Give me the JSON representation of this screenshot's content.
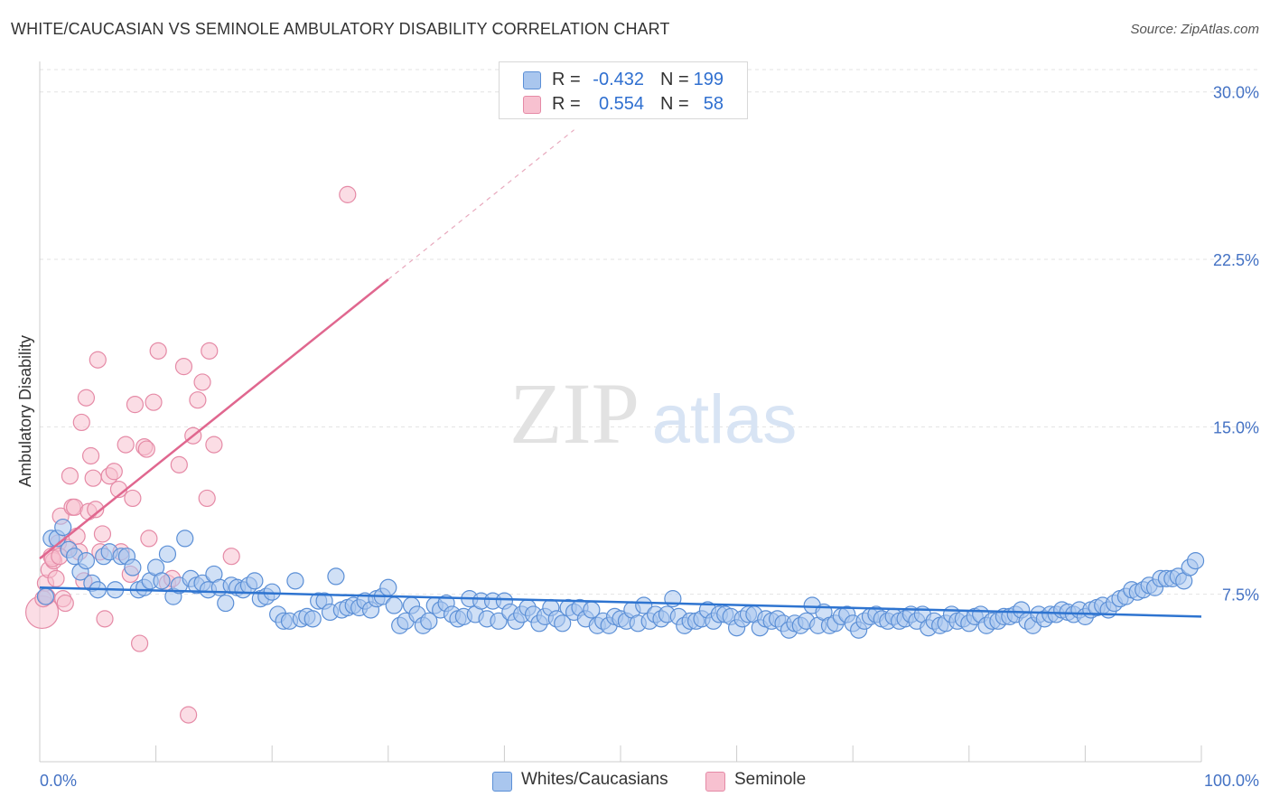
{
  "title": "WHITE/CAUCASIAN VS SEMINOLE AMBULATORY DISABILITY CORRELATION CHART",
  "source": "Source: ZipAtlas.com",
  "watermark": {
    "zip": "ZIP",
    "atlas": "atlas"
  },
  "colors": {
    "blue_fill": "#a9c6ee",
    "blue_stroke": "#5b8fd6",
    "blue_line": "#2e74d0",
    "pink_fill": "#f7c1d0",
    "pink_stroke": "#e58aa6",
    "pink_line": "#e0678f",
    "grid": "#e3e3e3",
    "label_blue": "#4472c4"
  },
  "legend": {
    "rows": [
      {
        "r_label": "R =",
        "r_value": "-0.432",
        "n_label": "N =",
        "n_value": "199"
      },
      {
        "r_label": "R =",
        "r_value": "0.554",
        "n_label": "N =",
        "n_value": "58"
      }
    ]
  },
  "bottom_legend": {
    "series1": "Whites/Caucasians",
    "series2": "Seminole"
  },
  "chart_data": {
    "type": "scatter",
    "title": "WHITE/CAUCASIAN VS SEMINOLE AMBULATORY DISABILITY CORRELATION CHART",
    "xlabel": "",
    "ylabel": "Ambulatory Disability",
    "xlim": [
      0,
      100
    ],
    "ylim": [
      0,
      31
    ],
    "x_tick_labels": {
      "min": "0.0%",
      "max": "100.0%"
    },
    "y_ticks": [
      7.5,
      15.0,
      22.5,
      30.0
    ],
    "y_tick_labels": [
      "7.5%",
      "15.0%",
      "22.5%",
      "30.0%"
    ],
    "series": [
      {
        "name": "Whites/Caucasians",
        "r": -0.432,
        "n": 199,
        "trend": {
          "x": [
            0,
            100
          ],
          "y": [
            7.8,
            6.5
          ]
        },
        "points": [
          [
            0.5,
            7.4
          ],
          [
            1,
            10
          ],
          [
            1.5,
            10
          ],
          [
            2,
            10.5
          ],
          [
            2.5,
            9.5
          ],
          [
            3,
            9.2
          ],
          [
            3.5,
            8.5
          ],
          [
            4,
            9
          ],
          [
            4.5,
            8
          ],
          [
            5,
            7.7
          ],
          [
            5.5,
            9.2
          ],
          [
            6,
            9.4
          ],
          [
            6.5,
            7.7
          ],
          [
            7,
            9.2
          ],
          [
            7.5,
            9.2
          ],
          [
            8,
            8.7
          ],
          [
            8.5,
            7.7
          ],
          [
            9,
            7.8
          ],
          [
            9.5,
            8.1
          ],
          [
            10,
            8.7
          ],
          [
            10.5,
            8.1
          ],
          [
            11,
            9.3
          ],
          [
            11.5,
            7.4
          ],
          [
            12,
            7.9
          ],
          [
            12.5,
            10
          ],
          [
            13,
            8.2
          ],
          [
            13.5,
            7.9
          ],
          [
            14,
            8
          ],
          [
            14.5,
            7.7
          ],
          [
            15,
            8.4
          ],
          [
            15.5,
            7.8
          ],
          [
            16,
            7.1
          ],
          [
            16.5,
            7.9
          ],
          [
            17,
            7.8
          ],
          [
            17.5,
            7.7
          ],
          [
            18,
            7.9
          ],
          [
            18.5,
            8.1
          ],
          [
            19,
            7.3
          ],
          [
            19.5,
            7.4
          ],
          [
            20,
            7.6
          ],
          [
            20.5,
            6.6
          ],
          [
            21,
            6.3
          ],
          [
            21.5,
            6.3
          ],
          [
            22,
            8.1
          ],
          [
            22.5,
            6.4
          ],
          [
            23,
            6.5
          ],
          [
            23.5,
            6.4
          ],
          [
            24,
            7.2
          ],
          [
            24.5,
            7.2
          ],
          [
            25,
            6.7
          ],
          [
            25.5,
            8.3
          ],
          [
            26,
            6.8
          ],
          [
            26.5,
            6.9
          ],
          [
            27,
            7
          ],
          [
            27.5,
            6.9
          ],
          [
            28,
            7.2
          ],
          [
            28.5,
            6.8
          ],
          [
            29,
            7.3
          ],
          [
            29.5,
            7.4
          ],
          [
            30,
            7.8
          ],
          [
            30.5,
            7
          ],
          [
            31,
            6.1
          ],
          [
            31.5,
            6.3
          ],
          [
            32,
            7
          ],
          [
            32.5,
            6.6
          ],
          [
            33,
            6.1
          ],
          [
            33.5,
            6.3
          ],
          [
            34,
            7
          ],
          [
            34.5,
            6.8
          ],
          [
            35,
            7.1
          ],
          [
            35.5,
            6.6
          ],
          [
            36,
            6.4
          ],
          [
            36.5,
            6.5
          ],
          [
            37,
            7.3
          ],
          [
            37.5,
            6.6
          ],
          [
            38,
            7.2
          ],
          [
            38.5,
            6.4
          ],
          [
            39,
            7.2
          ],
          [
            39.5,
            6.3
          ],
          [
            40,
            7.2
          ],
          [
            40.5,
            6.7
          ],
          [
            41,
            6.3
          ],
          [
            41.5,
            6.6
          ],
          [
            42,
            6.9
          ],
          [
            42.5,
            6.6
          ],
          [
            43,
            6.2
          ],
          [
            43.5,
            6.5
          ],
          [
            44,
            6.9
          ],
          [
            44.5,
            6.4
          ],
          [
            45,
            6.2
          ],
          [
            45.5,
            6.9
          ],
          [
            46,
            6.7
          ],
          [
            46.5,
            6.9
          ],
          [
            47,
            6.4
          ],
          [
            47.5,
            6.8
          ],
          [
            48,
            6.1
          ],
          [
            48.5,
            6.3
          ],
          [
            49,
            6.1
          ],
          [
            49.5,
            6.5
          ],
          [
            50,
            6.4
          ],
          [
            50.5,
            6.3
          ],
          [
            51,
            6.8
          ],
          [
            51.5,
            6.2
          ],
          [
            52,
            7
          ],
          [
            52.5,
            6.3
          ],
          [
            53,
            6.6
          ],
          [
            53.5,
            6.4
          ],
          [
            54,
            6.6
          ],
          [
            54.5,
            7.3
          ],
          [
            55,
            6.5
          ],
          [
            55.5,
            6.1
          ],
          [
            56,
            6.3
          ],
          [
            56.5,
            6.3
          ],
          [
            57,
            6.4
          ],
          [
            57.5,
            6.8
          ],
          [
            58,
            6.3
          ],
          [
            58.5,
            6.6
          ],
          [
            59,
            6.6
          ],
          [
            59.5,
            6.5
          ],
          [
            60,
            6
          ],
          [
            60.5,
            6.4
          ],
          [
            61,
            6.6
          ],
          [
            61.5,
            6.6
          ],
          [
            62,
            6
          ],
          [
            62.5,
            6.4
          ],
          [
            63,
            6.3
          ],
          [
            63.5,
            6.4
          ],
          [
            64,
            6.2
          ],
          [
            64.5,
            5.9
          ],
          [
            65,
            6.2
          ],
          [
            65.5,
            6.1
          ],
          [
            66,
            6.3
          ],
          [
            66.5,
            7
          ],
          [
            67,
            6.1
          ],
          [
            67.5,
            6.7
          ],
          [
            68,
            6.1
          ],
          [
            68.5,
            6.2
          ],
          [
            69,
            6.5
          ],
          [
            69.5,
            6.6
          ],
          [
            70,
            6.2
          ],
          [
            70.5,
            5.9
          ],
          [
            71,
            6.3
          ],
          [
            71.5,
            6.5
          ],
          [
            72,
            6.6
          ],
          [
            72.5,
            6.4
          ],
          [
            73,
            6.3
          ],
          [
            73.5,
            6.5
          ],
          [
            74,
            6.3
          ],
          [
            74.5,
            6.4
          ],
          [
            75,
            6.6
          ],
          [
            75.5,
            6.3
          ],
          [
            76,
            6.6
          ],
          [
            76.5,
            6
          ],
          [
            77,
            6.3
          ],
          [
            77.5,
            6.1
          ],
          [
            78,
            6.2
          ],
          [
            78.5,
            6.6
          ],
          [
            79,
            6.3
          ],
          [
            79.5,
            6.4
          ],
          [
            80,
            6.2
          ],
          [
            80.5,
            6.5
          ],
          [
            81,
            6.6
          ],
          [
            81.5,
            6.1
          ],
          [
            82,
            6.3
          ],
          [
            82.5,
            6.3
          ],
          [
            83,
            6.5
          ],
          [
            83.5,
            6.5
          ],
          [
            84,
            6.6
          ],
          [
            84.5,
            6.8
          ],
          [
            85,
            6.3
          ],
          [
            85.5,
            6.1
          ],
          [
            86,
            6.6
          ],
          [
            86.5,
            6.4
          ],
          [
            87,
            6.6
          ],
          [
            87.5,
            6.6
          ],
          [
            88,
            6.8
          ],
          [
            88.5,
            6.7
          ],
          [
            89,
            6.6
          ],
          [
            89.5,
            6.8
          ],
          [
            90,
            6.5
          ],
          [
            90.5,
            6.8
          ],
          [
            91,
            6.9
          ],
          [
            91.5,
            7
          ],
          [
            92,
            6.8
          ],
          [
            92.5,
            7.1
          ],
          [
            93,
            7.3
          ],
          [
            93.5,
            7.4
          ],
          [
            94,
            7.7
          ],
          [
            94.5,
            7.6
          ],
          [
            95,
            7.7
          ],
          [
            95.5,
            7.9
          ],
          [
            96,
            7.8
          ],
          [
            96.5,
            8.2
          ],
          [
            97,
            8.2
          ],
          [
            97.5,
            8.2
          ],
          [
            98,
            8.3
          ],
          [
            98.5,
            8.1
          ],
          [
            99,
            8.7
          ],
          [
            99.5,
            9
          ]
        ]
      },
      {
        "name": "Seminole",
        "r": 0.554,
        "n": 58,
        "trend": {
          "x": [
            0,
            30
          ],
          "y": [
            9.1,
            21.6
          ]
        },
        "trend_dashed": {
          "x": [
            30,
            46
          ],
          "y": [
            21.6,
            28.3
          ]
        },
        "points": [
          [
            0.2,
            6.7
          ],
          [
            0.3,
            7.3
          ],
          [
            0.5,
            8
          ],
          [
            0.6,
            7.4
          ],
          [
            0.8,
            8.6
          ],
          [
            1,
            9.2
          ],
          [
            1.2,
            9
          ],
          [
            1.4,
            8.2
          ],
          [
            1.6,
            9.8
          ],
          [
            1.8,
            11
          ],
          [
            2,
            7.3
          ],
          [
            2.2,
            7.1
          ],
          [
            2.4,
            9.6
          ],
          [
            2.6,
            12.8
          ],
          [
            2.8,
            11.4
          ],
          [
            3,
            11.4
          ],
          [
            3.2,
            10.1
          ],
          [
            3.4,
            9.4
          ],
          [
            3.6,
            15.2
          ],
          [
            3.8,
            8.1
          ],
          [
            4,
            16.3
          ],
          [
            4.2,
            11.2
          ],
          [
            4.4,
            13.7
          ],
          [
            4.6,
            12.7
          ],
          [
            4.8,
            11.3
          ],
          [
            5,
            18
          ],
          [
            5.2,
            9.4
          ],
          [
            5.4,
            10.2
          ],
          [
            5.6,
            6.4
          ],
          [
            6,
            12.8
          ],
          [
            6.4,
            13
          ],
          [
            6.8,
            12.2
          ],
          [
            7,
            9.4
          ],
          [
            7.4,
            14.2
          ],
          [
            7.8,
            8.4
          ],
          [
            8,
            11.8
          ],
          [
            8.2,
            16
          ],
          [
            8.6,
            5.3
          ],
          [
            9,
            14.1
          ],
          [
            9.2,
            14
          ],
          [
            9.4,
            10
          ],
          [
            9.8,
            16.1
          ],
          [
            10.2,
            18.4
          ],
          [
            11,
            8
          ],
          [
            11.4,
            8.2
          ],
          [
            12,
            13.3
          ],
          [
            12.4,
            17.7
          ],
          [
            12.8,
            2.1
          ],
          [
            13.2,
            14.6
          ],
          [
            13.6,
            16.2
          ],
          [
            14,
            17
          ],
          [
            14.4,
            11.8
          ],
          [
            14.6,
            18.4
          ],
          [
            15,
            14.2
          ],
          [
            16.5,
            9.2
          ],
          [
            26.5,
            25.4
          ],
          [
            1.1,
            9.1
          ],
          [
            1.7,
            9.2
          ]
        ]
      }
    ]
  }
}
